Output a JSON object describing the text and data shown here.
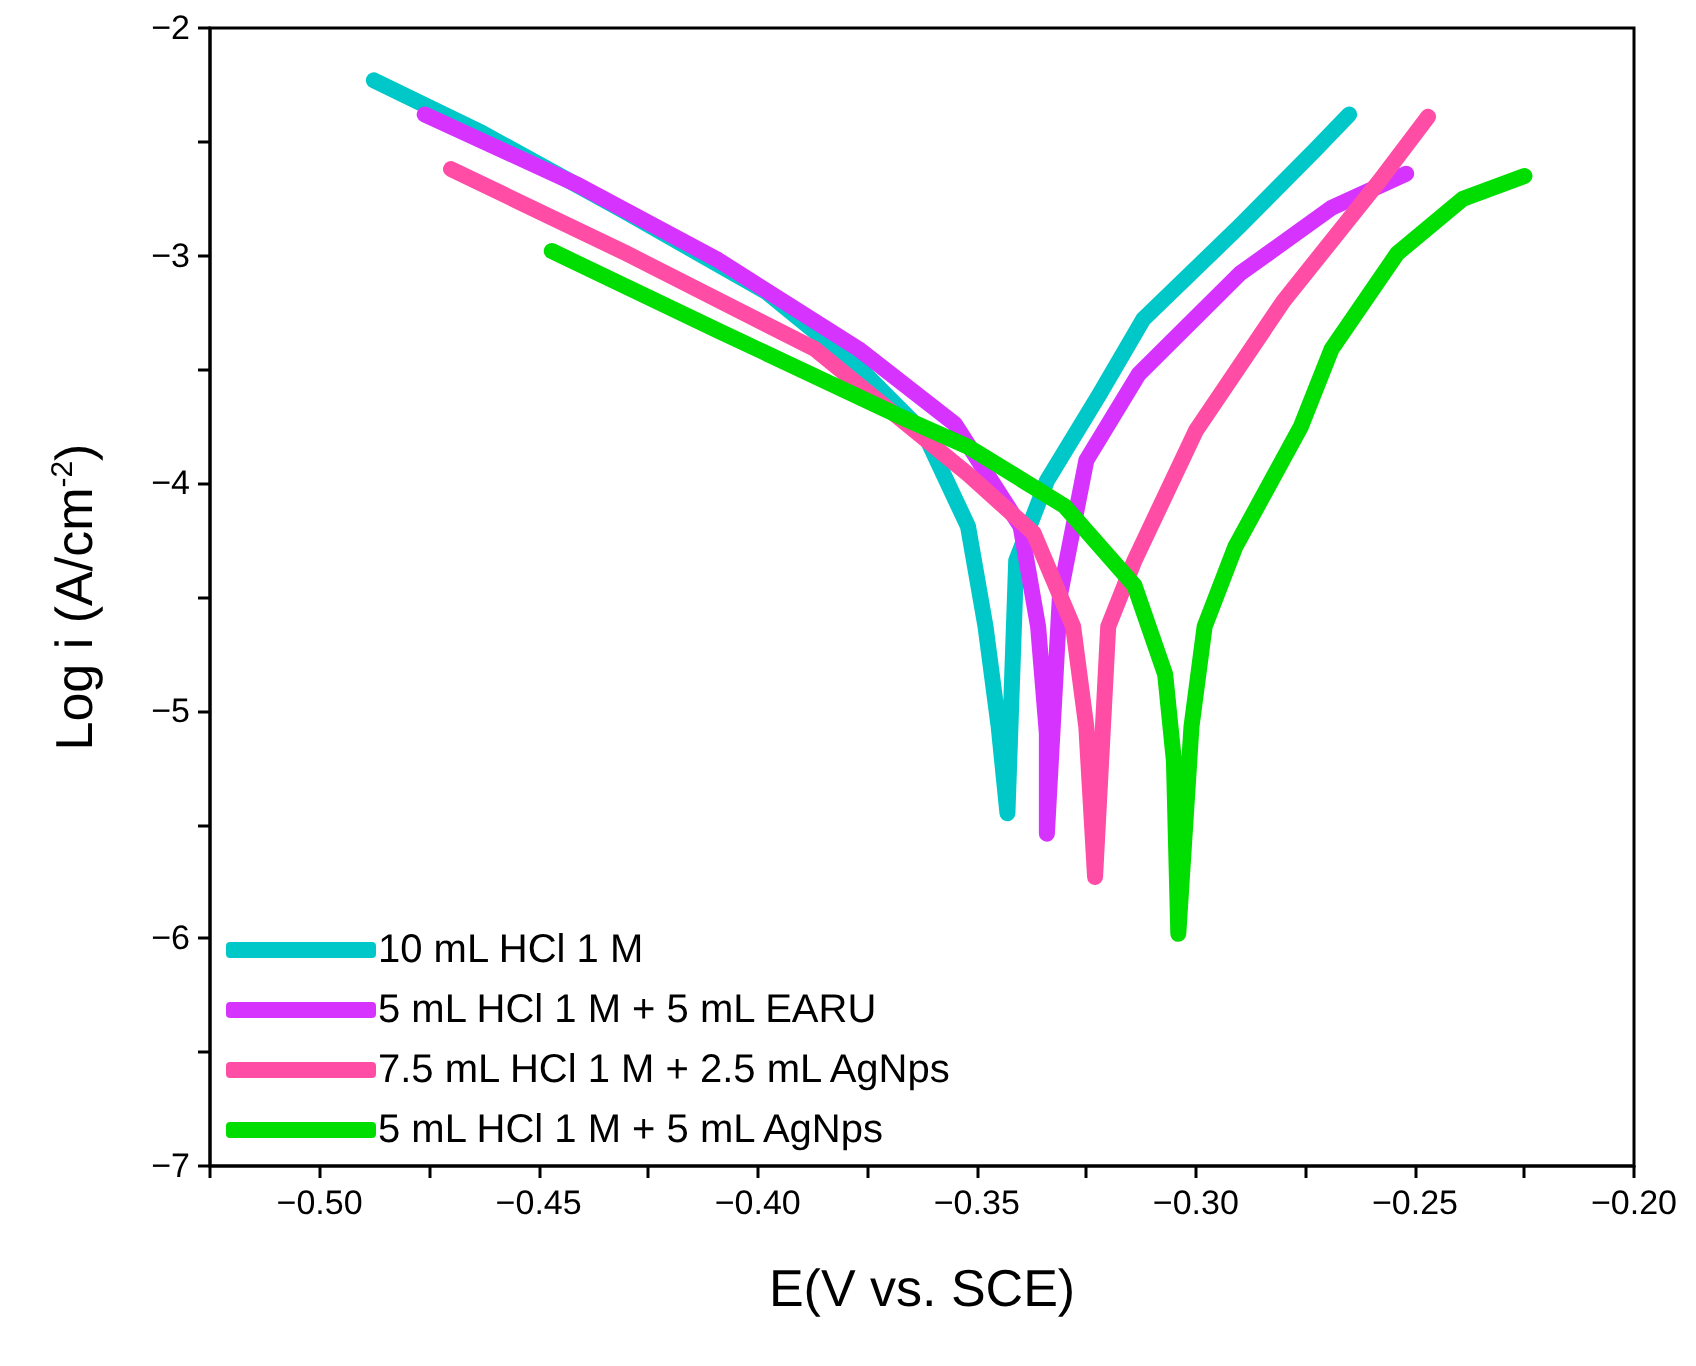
{
  "chart_data": {
    "type": "line",
    "xlabel": "E(V vs. SCE)",
    "ylabel": "Log i (A/cm$^{-2}$)",
    "xlim": [
      -0.525,
      -0.2
    ],
    "ylim": [
      -7,
      -2
    ],
    "xticks": [
      {
        "value": -0.525,
        "label": null
      },
      {
        "value": -0.5,
        "label": "−0.50"
      },
      {
        "value": -0.475,
        "label": null
      },
      {
        "value": -0.45,
        "label": "−0.45"
      },
      {
        "value": -0.425,
        "label": null
      },
      {
        "value": -0.4,
        "label": "−0.40"
      },
      {
        "value": -0.375,
        "label": null
      },
      {
        "value": -0.35,
        "label": "−0.35"
      },
      {
        "value": -0.325,
        "label": null
      },
      {
        "value": -0.3,
        "label": "−0.30"
      },
      {
        "value": -0.275,
        "label": null
      },
      {
        "value": -0.25,
        "label": "−0.25"
      },
      {
        "value": -0.225,
        "label": null
      },
      {
        "value": -0.2,
        "label": "−0.20"
      }
    ],
    "yticks": [
      {
        "value": -7,
        "label": "−7"
      },
      {
        "value": -6.5,
        "label": null
      },
      {
        "value": -6,
        "label": "−6"
      },
      {
        "value": -5.5,
        "label": null
      },
      {
        "value": -5,
        "label": "−5"
      },
      {
        "value": -4.5,
        "label": null
      },
      {
        "value": -4,
        "label": "−4"
      },
      {
        "value": -3.5,
        "label": null
      },
      {
        "value": -3,
        "label": "−3"
      },
      {
        "value": -2.5,
        "label": null
      },
      {
        "value": -2,
        "label": "−2"
      }
    ],
    "grid": false,
    "legend": "bottom left",
    "marker": "none",
    "line_style": "solid",
    "series": [
      {
        "name": "10 mL HCl 1 M",
        "color": "#00c8c8",
        "x": [
          -0.4876,
          -0.463,
          -0.43,
          -0.398,
          -0.377,
          -0.362,
          -0.352,
          -0.348,
          -0.345,
          -0.343,
          -0.341,
          -0.334,
          -0.322,
          -0.312,
          -0.29,
          -0.273,
          -0.265
        ],
        "values": [
          -2.23,
          -2.46,
          -2.81,
          -3.16,
          -3.49,
          -3.78,
          -4.19,
          -4.63,
          -5.07,
          -5.45,
          -4.34,
          -3.99,
          -3.61,
          -3.28,
          -2.87,
          -2.54,
          -2.38
        ]
      },
      {
        "name": "5 mL HCl 1 M + 5 mL EARU",
        "color": "#d633ff",
        "x": [
          -0.476,
          -0.441,
          -0.409,
          -0.377,
          -0.355,
          -0.34,
          -0.336,
          -0.334,
          -0.334,
          -0.331,
          -0.325,
          -0.313,
          -0.29,
          -0.269,
          -0.252
        ],
        "values": [
          -2.38,
          -2.69,
          -3.02,
          -3.41,
          -3.74,
          -4.19,
          -4.63,
          -5.1,
          -5.54,
          -4.49,
          -3.9,
          -3.52,
          -3.08,
          -2.79,
          -2.64
        ]
      },
      {
        "name": "7.5 mL HCl 1 M + 2.5 mL AgNps",
        "color": "#ff4da6",
        "x": [
          -0.47,
          -0.43,
          -0.387,
          -0.352,
          -0.337,
          -0.328,
          -0.325,
          -0.323,
          -0.32,
          -0.314,
          -0.3,
          -0.28,
          -0.258,
          -0.247
        ],
        "values": [
          -2.62,
          -2.99,
          -3.41,
          -3.96,
          -4.22,
          -4.63,
          -5.07,
          -5.73,
          -4.63,
          -4.34,
          -3.77,
          -3.2,
          -2.67,
          -2.39
        ]
      },
      {
        "name": "5 mL HCl 1 M + 5 mL AgNps",
        "color": "#00dd00",
        "x": [
          -0.447,
          -0.409,
          -0.366,
          -0.352,
          -0.33,
          -0.314,
          -0.307,
          -0.305,
          -0.304,
          -0.301,
          -0.298,
          -0.291,
          -0.276,
          -0.269,
          -0.254,
          -0.239,
          -0.225
        ],
        "values": [
          -2.98,
          -3.33,
          -3.72,
          -3.84,
          -4.1,
          -4.45,
          -4.84,
          -5.22,
          -5.98,
          -5.07,
          -4.63,
          -4.28,
          -3.75,
          -3.41,
          -2.99,
          -2.75,
          -2.65
        ]
      }
    ]
  }
}
